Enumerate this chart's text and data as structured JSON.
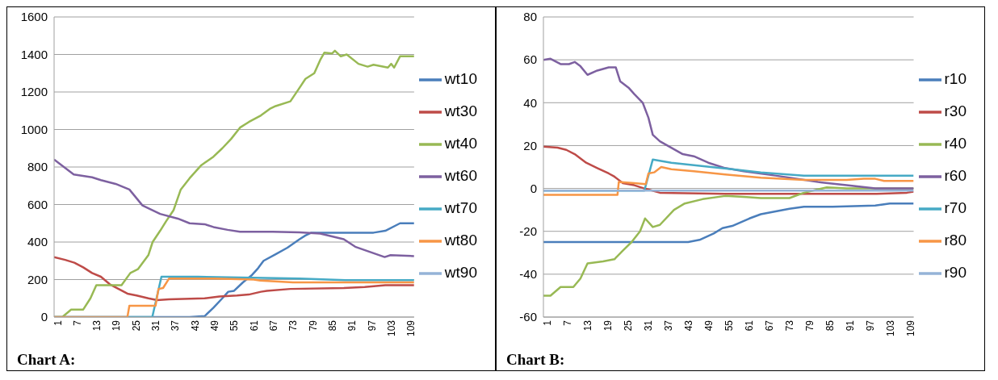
{
  "chart_data": [
    {
      "type": "line",
      "annotations": [
        "Chart A:"
      ],
      "xlim": [
        1,
        111
      ],
      "xticks": [
        1,
        7,
        13,
        19,
        25,
        31,
        37,
        43,
        49,
        55,
        61,
        67,
        73,
        79,
        85,
        91,
        97,
        103,
        109
      ],
      "ylim": [
        0,
        1600
      ],
      "yticks": [
        0,
        200,
        400,
        600,
        800,
        1000,
        1200,
        1400,
        1600
      ],
      "grid": "y",
      "legend": "right",
      "marker": "none",
      "line_style": "solid",
      "series": [
        {
          "name": "wt10",
          "color": "#4a7ebb",
          "x": [
            1,
            42.4,
            47,
            49.7,
            52.4,
            54.2,
            56,
            58.7,
            61.5,
            63.3,
            65,
            68.7,
            72.3,
            76,
            77.8,
            79.6,
            98.6,
            102.2,
            106.7,
            111
          ],
          "values": [
            0,
            0,
            5,
            50,
            100,
            135,
            140,
            185,
            225,
            260,
            300,
            335,
            370,
            415,
            435,
            450,
            450,
            460,
            500,
            500
          ]
        },
        {
          "name": "wt30",
          "color": "#be4b48",
          "x": [
            1,
            4.4,
            7.2,
            9.9,
            12.6,
            15.3,
            18,
            20.7,
            23.4,
            26.2,
            29.8,
            32.5,
            36.1,
            47,
            51.5,
            56.9,
            60.5,
            64.2,
            66,
            73.2,
            89.5,
            95.9,
            102.2,
            111
          ],
          "values": [
            320,
            305,
            290,
            265,
            235,
            215,
            175,
            150,
            125,
            115,
            100,
            90,
            95,
            100,
            110,
            115,
            120,
            135,
            140,
            150,
            155,
            160,
            170,
            170
          ]
        },
        {
          "name": "wt40",
          "color": "#98b954",
          "x": [
            1,
            3.5,
            6.2,
            9.9,
            12.1,
            13.9,
            21.6,
            24.3,
            26.6,
            29.8,
            31.1,
            33.4,
            35.2,
            37.5,
            39.7,
            42.4,
            46,
            49.7,
            52.4,
            55.1,
            57.8,
            60.5,
            64.2,
            66.9,
            68.7,
            73.2,
            75.9,
            77.8,
            80.5,
            82.3,
            83.6,
            85.9,
            86.8,
            88.6,
            90.4,
            94,
            96.8,
            98.6,
            103,
            104,
            104.9,
            106.7,
            111
          ],
          "values": [
            0,
            0,
            40,
            40,
            100,
            170,
            170,
            235,
            255,
            330,
            400,
            460,
            510,
            570,
            680,
            740,
            810,
            855,
            900,
            950,
            1010,
            1040,
            1075,
            1110,
            1125,
            1150,
            1220,
            1270,
            1300,
            1370,
            1410,
            1405,
            1420,
            1390,
            1400,
            1350,
            1335,
            1345,
            1330,
            1350,
            1330,
            1390,
            1390
          ]
        },
        {
          "name": "wt60",
          "color": "#7d60a0",
          "x": [
            1,
            7,
            12.6,
            15.3,
            19.8,
            24,
            28,
            33.4,
            38.8,
            42.4,
            47,
            49.7,
            54,
            57.8,
            67.8,
            76,
            82.3,
            89.5,
            93,
            102,
            103.8,
            111
          ],
          "values": [
            840,
            760,
            745,
            730,
            710,
            680,
            595,
            550,
            525,
            500,
            495,
            480,
            465,
            455,
            455,
            452,
            445,
            415,
            375,
            320,
            330,
            325
          ]
        },
        {
          "name": "wt70",
          "color": "#46aac5",
          "x": [
            1,
            31,
            33.8,
            45,
            62,
            76,
            90,
            111
          ],
          "values": [
            0,
            0,
            215,
            215,
            210,
            205,
            197,
            197
          ]
        },
        {
          "name": "wt80",
          "color": "#f79646",
          "x": [
            1,
            23.4,
            24,
            32,
            32.9,
            34.3,
            36.1,
            50,
            62,
            64,
            74,
            111
          ],
          "values": [
            0,
            0,
            60,
            60,
            150,
            155,
            205,
            205,
            200,
            195,
            185,
            185
          ]
        },
        {
          "name": "wt90",
          "color": "#95b3d7"
        }
      ]
    },
    {
      "type": "line",
      "annotations": [
        "Chart B:"
      ],
      "xlim": [
        1,
        111
      ],
      "xticks": [
        1,
        7,
        13,
        19,
        25,
        31,
        37,
        43,
        49,
        55,
        61,
        67,
        73,
        79,
        85,
        91,
        97,
        103,
        109
      ],
      "ylim": [
        -60,
        80
      ],
      "yticks": [
        -60,
        -40,
        -20,
        0,
        20,
        40,
        60,
        80
      ],
      "grid": "y",
      "legend": "right",
      "marker": "none",
      "line_style": "solid",
      "series": [
        {
          "name": "r10",
          "color": "#4a7ebb",
          "x": [
            1,
            44,
            47.4,
            51.6,
            54.2,
            57.1,
            62.2,
            65.6,
            74.1,
            78.4,
            86.9,
            99.6,
            103.9,
            111
          ],
          "values": [
            -25,
            -25,
            -24,
            -21,
            -18.5,
            -17.5,
            -14,
            -12,
            -9.5,
            -8.5,
            -8.5,
            -8,
            -7,
            -7
          ]
        },
        {
          "name": "r30",
          "color": "#be4b48",
          "x": [
            1,
            5.2,
            7.8,
            10.3,
            13.7,
            17,
            20.4,
            22.1,
            24.6,
            28,
            31,
            35.6,
            55,
            100,
            109,
            111
          ],
          "values": [
            19.5,
            19,
            18,
            16,
            12,
            9.5,
            7,
            5.5,
            2.5,
            1.5,
            0,
            -2,
            -2.5,
            -2.5,
            -2,
            -1.5
          ]
        },
        {
          "name": "r40",
          "color": "#98b954",
          "x": [
            1,
            3.1,
            6.1,
            9.9,
            12,
            14.1,
            18.7,
            22.1,
            24.6,
            27.2,
            29.7,
            31.2,
            33.5,
            35.6,
            39.8,
            43,
            48.3,
            55,
            61.4,
            65.6,
            74.1,
            78.4,
            85.2,
            91.1,
            111
          ],
          "values": [
            -50,
            -50,
            -46,
            -46,
            -42,
            -35,
            -34,
            -33,
            -29,
            -25,
            -20,
            -14,
            -18,
            -17,
            -10,
            -7,
            -5,
            -3.5,
            -4,
            -4.5,
            -4.5,
            -2,
            0.5,
            0,
            0
          ]
        },
        {
          "name": "r60",
          "color": "#7d60a0",
          "x": [
            1,
            3.1,
            6.1,
            8.6,
            10.3,
            12,
            14.1,
            17,
            20.4,
            22.5,
            23.8,
            26.3,
            28,
            30.5,
            32.2,
            33.5,
            35.6,
            39,
            42.4,
            45.7,
            50,
            55,
            60.5,
            69.9,
            82.6,
            91.1,
            99.6,
            111
          ],
          "values": [
            60,
            60.5,
            58,
            58,
            59,
            57,
            53,
            55,
            56.5,
            56.5,
            50,
            47,
            44,
            40,
            33,
            25,
            22,
            19,
            16,
            15,
            12,
            9.5,
            8,
            6,
            3,
            1.5,
            0,
            0
          ]
        },
        {
          "name": "r70",
          "color": "#46aac5",
          "x": [
            1,
            31,
            33.5,
            39,
            50.8,
            57.1,
            65.6,
            78.4,
            111
          ],
          "values": [
            -1,
            -1,
            13.5,
            12,
            10,
            9,
            7.5,
            6,
            6
          ]
        },
        {
          "name": "r80",
          "color": "#f79646",
          "x": [
            1,
            23,
            23.4,
            28,
            31.4,
            32.2,
            33.9,
            36,
            39,
            45.7,
            55,
            65.6,
            78.4,
            91.1,
            96.2,
            99.6,
            102.2,
            111
          ],
          "values": [
            -3,
            -3,
            3,
            2.5,
            2,
            7,
            7.5,
            10,
            9,
            8,
            6.5,
            5,
            4,
            4,
            4.5,
            4.5,
            3.5,
            3.5
          ]
        },
        {
          "name": "r90",
          "color": "#95b3d7",
          "x": [
            1,
            111
          ],
          "values": [
            -1,
            -1
          ]
        }
      ]
    }
  ]
}
